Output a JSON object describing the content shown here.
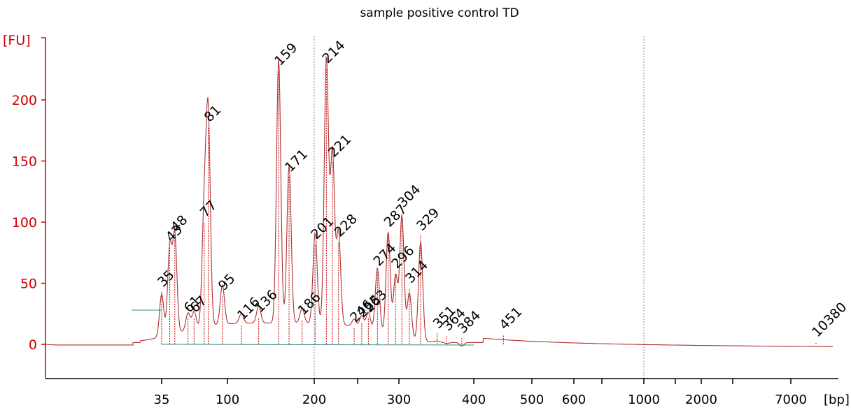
{
  "chart_data": {
    "type": "line",
    "title": "sample positive control TD",
    "ylabel": "[FU]",
    "xlabel": "[bp]",
    "ylim": [
      -27,
      250
    ],
    "yticks": [
      0,
      50,
      100,
      150,
      200
    ],
    "xticks": [
      "35",
      "100",
      "200",
      "300",
      "400",
      "500",
      "600",
      "1000",
      "2000",
      "7000"
    ],
    "x_unlabeled_ticks": [
      250,
      700,
      1500,
      3000
    ],
    "colors": {
      "axis": "#cc0000",
      "trace": "#b03030",
      "peak_marker": "#cc0000",
      "baseline": "#3a8f86",
      "lower_marker": "#2e8b57",
      "upper_marker": "#9933ee",
      "guide": "#8888bb"
    },
    "lower_marker": {
      "label": "35",
      "x": 35,
      "y": 43
    },
    "upper_marker": {
      "label": "10380",
      "x": 10380,
      "y": 2
    },
    "peaks": [
      {
        "label": "43",
        "x": 43,
        "y": 80
      },
      {
        "label": "48",
        "x": 48,
        "y": 88
      },
      {
        "label": "61",
        "x": 61,
        "y": 22
      },
      {
        "label": "67",
        "x": 67,
        "y": 22
      },
      {
        "label": "77",
        "x": 77,
        "y": 100
      },
      {
        "label": "81",
        "x": 81,
        "y": 178
      },
      {
        "label": "95",
        "x": 95,
        "y": 40
      },
      {
        "label": "116",
        "x": 116,
        "y": 16
      },
      {
        "label": "136",
        "x": 136,
        "y": 22
      },
      {
        "label": "159",
        "x": 159,
        "y": 224
      },
      {
        "label": "171",
        "x": 171,
        "y": 137
      },
      {
        "label": "186",
        "x": 186,
        "y": 20
      },
      {
        "label": "201",
        "x": 201,
        "y": 82
      },
      {
        "label": "214",
        "x": 214,
        "y": 226
      },
      {
        "label": "221",
        "x": 221,
        "y": 149
      },
      {
        "label": "228",
        "x": 228,
        "y": 84
      },
      {
        "label": "246",
        "x": 246,
        "y": 14
      },
      {
        "label": "255",
        "x": 255,
        "y": 18
      },
      {
        "label": "263",
        "x": 263,
        "y": 22
      },
      {
        "label": "274",
        "x": 274,
        "y": 60
      },
      {
        "label": "287",
        "x": 287,
        "y": 92
      },
      {
        "label": "296",
        "x": 296,
        "y": 58
      },
      {
        "label": "304",
        "x": 304,
        "y": 108
      },
      {
        "label": "314",
        "x": 314,
        "y": 46
      },
      {
        "label": "329",
        "x": 329,
        "y": 89
      },
      {
        "label": "351",
        "x": 351,
        "y": 9
      },
      {
        "label": "364",
        "x": 364,
        "y": 7
      },
      {
        "label": "384",
        "x": 384,
        "y": 5
      },
      {
        "label": "451",
        "x": 451,
        "y": 8
      }
    ],
    "grid": false,
    "legend": "none"
  }
}
